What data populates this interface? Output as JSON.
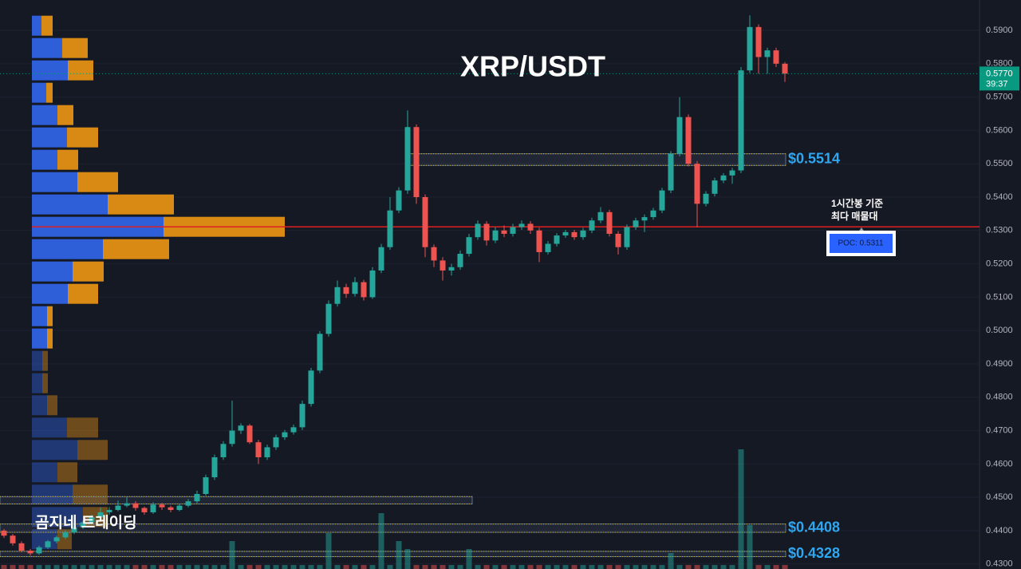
{
  "chart_data": {
    "type": "candlestick",
    "title": "XRP/USDT",
    "watermark": "곰지네 트레이딩",
    "ylim": [
      0.4285,
      0.5991
    ],
    "yticks": [
      {
        "value": 0.59,
        "label": "0.5900"
      },
      {
        "value": 0.58,
        "label": "0.5800"
      },
      {
        "value": 0.57,
        "label": "0.5700"
      },
      {
        "value": 0.56,
        "label": "0.5600"
      },
      {
        "value": 0.55,
        "label": "0.5500"
      },
      {
        "value": 0.54,
        "label": "0.5400"
      },
      {
        "value": 0.53,
        "label": "0.5300"
      },
      {
        "value": 0.52,
        "label": "0.5200"
      },
      {
        "value": 0.51,
        "label": "0.5100"
      },
      {
        "value": 0.5,
        "label": "0.5000"
      },
      {
        "value": 0.49,
        "label": "0.4900"
      },
      {
        "value": 0.48,
        "label": "0.4800"
      },
      {
        "value": 0.47,
        "label": "0.4700"
      },
      {
        "value": 0.46,
        "label": "0.4600"
      },
      {
        "value": 0.45,
        "label": "0.4500"
      },
      {
        "value": 0.44,
        "label": "0.4400"
      },
      {
        "value": 0.43,
        "label": "0.4300"
      }
    ],
    "grid": true,
    "up_color": "#26a69a",
    "down_color": "#ef5350",
    "candles": [
      [
        0.44,
        0.4405,
        0.4378,
        0.4385
      ],
      [
        0.4385,
        0.439,
        0.4355,
        0.4362
      ],
      [
        0.4362,
        0.4368,
        0.4335,
        0.434
      ],
      [
        0.434,
        0.4345,
        0.4325,
        0.4332
      ],
      [
        0.4332,
        0.4355,
        0.4328,
        0.435
      ],
      [
        0.435,
        0.4372,
        0.4345,
        0.4368
      ],
      [
        0.4368,
        0.4385,
        0.4362,
        0.438
      ],
      [
        0.438,
        0.44,
        0.4375,
        0.4395
      ],
      [
        0.4395,
        0.4415,
        0.439,
        0.441
      ],
      [
        0.441,
        0.443,
        0.4405,
        0.4425
      ],
      [
        0.4425,
        0.4448,
        0.442,
        0.444
      ],
      [
        0.444,
        0.447,
        0.4435,
        0.4455
      ],
      [
        0.4455,
        0.447,
        0.4448,
        0.4462
      ],
      [
        0.4462,
        0.449,
        0.4458,
        0.4475
      ],
      [
        0.4475,
        0.45,
        0.447,
        0.4482
      ],
      [
        0.4482,
        0.4488,
        0.446,
        0.4468
      ],
      [
        0.4468,
        0.4472,
        0.4448,
        0.4455
      ],
      [
        0.4455,
        0.4485,
        0.445,
        0.4478
      ],
      [
        0.4478,
        0.4483,
        0.4462,
        0.447
      ],
      [
        0.447,
        0.4475,
        0.4455,
        0.4462
      ],
      [
        0.4462,
        0.448,
        0.4458,
        0.4475
      ],
      [
        0.4475,
        0.4495,
        0.447,
        0.4488
      ],
      [
        0.4488,
        0.452,
        0.4482,
        0.451
      ],
      [
        0.451,
        0.4568,
        0.4505,
        0.456
      ],
      [
        0.456,
        0.4628,
        0.4552,
        0.462
      ],
      [
        0.462,
        0.4668,
        0.4612,
        0.466
      ],
      [
        0.466,
        0.479,
        0.4652,
        0.47
      ],
      [
        0.47,
        0.4722,
        0.469,
        0.4715
      ],
      [
        0.4715,
        0.472,
        0.466,
        0.4665
      ],
      [
        0.4665,
        0.4672,
        0.46,
        0.462
      ],
      [
        0.462,
        0.4658,
        0.4612,
        0.465
      ],
      [
        0.465,
        0.4688,
        0.4642,
        0.468
      ],
      [
        0.468,
        0.4702,
        0.4672,
        0.4695
      ],
      [
        0.4695,
        0.4718,
        0.4688,
        0.471
      ],
      [
        0.471,
        0.479,
        0.4702,
        0.478
      ],
      [
        0.478,
        0.4888,
        0.4772,
        0.488
      ],
      [
        0.488,
        0.4998,
        0.4872,
        0.499
      ],
      [
        0.499,
        0.509,
        0.4982,
        0.508
      ],
      [
        0.508,
        0.515,
        0.5072,
        0.513
      ],
      [
        0.513,
        0.514,
        0.5098,
        0.511
      ],
      [
        0.511,
        0.516,
        0.5102,
        0.5145
      ],
      [
        0.5145,
        0.5152,
        0.509,
        0.51
      ],
      [
        0.51,
        0.519,
        0.5095,
        0.518
      ],
      [
        0.518,
        0.526,
        0.5172,
        0.525
      ],
      [
        0.525,
        0.54,
        0.5242,
        0.536
      ],
      [
        0.536,
        0.543,
        0.5352,
        0.542
      ],
      [
        0.542,
        0.566,
        0.541,
        0.561
      ],
      [
        0.561,
        0.5618,
        0.538,
        0.54
      ],
      [
        0.54,
        0.5408,
        0.522,
        0.525
      ],
      [
        0.525,
        0.5258,
        0.519,
        0.521
      ],
      [
        0.521,
        0.522,
        0.515,
        0.518
      ],
      [
        0.518,
        0.52,
        0.5165,
        0.519
      ],
      [
        0.519,
        0.524,
        0.5182,
        0.523
      ],
      [
        0.523,
        0.529,
        0.5222,
        0.528
      ],
      [
        0.528,
        0.533,
        0.5272,
        0.532
      ],
      [
        0.532,
        0.5328,
        0.5255,
        0.527
      ],
      [
        0.527,
        0.531,
        0.5262,
        0.53
      ],
      [
        0.53,
        0.5315,
        0.528,
        0.529
      ],
      [
        0.529,
        0.532,
        0.5282,
        0.531
      ],
      [
        0.531,
        0.533,
        0.5302,
        0.532
      ],
      [
        0.532,
        0.5328,
        0.529,
        0.53
      ],
      [
        0.53,
        0.5308,
        0.5205,
        0.5235
      ],
      [
        0.5235,
        0.5268,
        0.5228,
        0.526
      ],
      [
        0.526,
        0.5292,
        0.5252,
        0.5285
      ],
      [
        0.5285,
        0.5302,
        0.5278,
        0.5295
      ],
      [
        0.5295,
        0.5302,
        0.5272,
        0.528
      ],
      [
        0.528,
        0.5308,
        0.5272,
        0.53
      ],
      [
        0.53,
        0.5338,
        0.5292,
        0.533
      ],
      [
        0.533,
        0.537,
        0.5322,
        0.5355
      ],
      [
        0.5355,
        0.5362,
        0.5282,
        0.529
      ],
      [
        0.529,
        0.5298,
        0.5228,
        0.525
      ],
      [
        0.525,
        0.5318,
        0.5242,
        0.531
      ],
      [
        0.531,
        0.5338,
        0.5302,
        0.533
      ],
      [
        0.533,
        0.5348,
        0.5295,
        0.534
      ],
      [
        0.534,
        0.5368,
        0.5332,
        0.536
      ],
      [
        0.536,
        0.5428,
        0.5352,
        0.542
      ],
      [
        0.542,
        0.5538,
        0.5412,
        0.553
      ],
      [
        0.553,
        0.57,
        0.5522,
        0.564
      ],
      [
        0.564,
        0.5648,
        0.5492,
        0.55
      ],
      [
        0.55,
        0.5508,
        0.531,
        0.538
      ],
      [
        0.538,
        0.5418,
        0.5372,
        0.541
      ],
      [
        0.541,
        0.5458,
        0.5402,
        0.545
      ],
      [
        0.545,
        0.5472,
        0.5442,
        0.5465
      ],
      [
        0.5465,
        0.5488,
        0.544,
        0.548
      ],
      [
        0.548,
        0.579,
        0.5472,
        0.578
      ],
      [
        0.578,
        0.5945,
        0.5772,
        0.591
      ],
      [
        0.591,
        0.5918,
        0.577,
        0.582
      ],
      [
        0.582,
        0.5848,
        0.577,
        0.584
      ],
      [
        0.584,
        0.5848,
        0.579,
        0.58
      ],
      [
        0.58,
        0.5805,
        0.5745,
        0.577
      ]
    ],
    "volumes": [
      5,
      5,
      5,
      5,
      5,
      5,
      5,
      5,
      5,
      5,
      5,
      5,
      5,
      5,
      5,
      5,
      5,
      5,
      5,
      5,
      5,
      5,
      5,
      5,
      5,
      5,
      35,
      5,
      5,
      5,
      5,
      5,
      5,
      5,
      5,
      5,
      5,
      45,
      5,
      5,
      5,
      5,
      5,
      70,
      5,
      35,
      25,
      5,
      5,
      5,
      5,
      5,
      5,
      25,
      5,
      5,
      5,
      5,
      5,
      5,
      5,
      5,
      5,
      5,
      5,
      5,
      5,
      5,
      5,
      5,
      5,
      5,
      5,
      5,
      5,
      5,
      20,
      5,
      5,
      5,
      5,
      5,
      5,
      5,
      150,
      55,
      5,
      5,
      5,
      5
    ],
    "profile": {
      "levels": [
        0.5914,
        0.5847,
        0.578,
        0.5713,
        0.5646,
        0.5579,
        0.5512,
        0.5445,
        0.5378,
        0.5311,
        0.5244,
        0.5177,
        0.511,
        0.5043,
        0.4976,
        0.4909,
        0.4842,
        0.4776,
        0.4709,
        0.4642,
        0.4575,
        0.4508,
        0.4441,
        0.4374
      ],
      "buy": [
        12,
        38,
        45,
        18,
        32,
        44,
        32,
        57,
        95,
        165,
        89,
        51,
        45,
        19,
        19,
        13,
        13,
        19,
        44,
        57,
        32,
        51,
        64,
        32
      ],
      "sell": [
        14,
        32,
        32,
        8,
        20,
        39,
        26,
        51,
        83,
        152,
        83,
        39,
        38,
        7,
        7,
        7,
        7,
        13,
        39,
        38,
        25,
        44,
        31,
        18
      ],
      "buy_color": "#2f5fd8",
      "sell_color": "#d98a14"
    },
    "zones": [
      {
        "label": "$0.5514",
        "top": 0.553,
        "bottom": 0.5495
      },
      {
        "top": 0.4502,
        "bottom": 0.448
      },
      {
        "label": "$0.4408",
        "top": 0.442,
        "bottom": 0.4395
      },
      {
        "label": "$0.4328",
        "top": 0.4338,
        "bottom": 0.4322
      }
    ],
    "poc": {
      "value": 0.5311,
      "label": "POC: 0.5311",
      "note": [
        "1시간봉 기준",
        "최다 매물대"
      ],
      "color": "#e02020"
    },
    "last_price": {
      "value": 0.577,
      "label": "0.5770",
      "countdown": "39:37",
      "color": "#089981"
    }
  }
}
